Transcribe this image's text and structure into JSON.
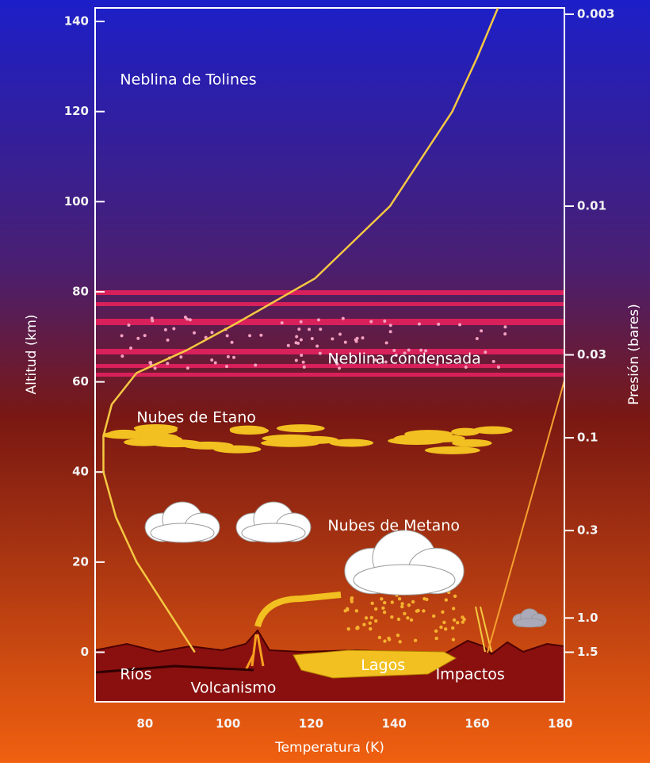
{
  "chart_data": {
    "type": "line",
    "xlabel": "Temperatura (K)",
    "ylabel": "Altitud (km)",
    "y2label": "Presión (bares)",
    "xlim": [
      68,
      181
    ],
    "ylim": [
      -11,
      143
    ],
    "xticks": [
      80,
      100,
      120,
      140,
      160,
      180
    ],
    "yticks": [
      0,
      20,
      40,
      60,
      80,
      100,
      120,
      140
    ],
    "pressure_labels": [
      {
        "label": "0.003",
        "altitude": 141.6
      },
      {
        "label": "0.01",
        "altitude": 99
      },
      {
        "label": "0.03",
        "altitude": 66
      },
      {
        "label": "0.1",
        "altitude": 47.6
      },
      {
        "label": "0.3",
        "altitude": 27
      },
      {
        "label": "1.0",
        "altitude": 7.6
      },
      {
        "label": "1.5",
        "altitude": 0
      }
    ],
    "series": [
      {
        "color": "#f5c842",
        "x": [
          92,
          85,
          78,
          73,
          70,
          70,
          72,
          78,
          90,
          102,
          121,
          139,
          154,
          160,
          165
        ],
        "values": [
          0,
          10,
          20,
          30,
          40,
          48,
          55,
          62,
          67,
          73,
          83,
          99,
          120,
          132,
          143
        ]
      }
    ],
    "annotations": [
      {
        "text": "Neblina de Tolines",
        "x": 74,
        "y": 127
      },
      {
        "text": "Neblina condensada",
        "x": 124,
        "y": 65
      },
      {
        "text": "Nubes de Etano",
        "x": 78,
        "y": 52
      },
      {
        "text": "Nubes de Metano",
        "x": 124,
        "y": 28
      },
      {
        "text": "Lagos",
        "x": 132,
        "y": -3
      },
      {
        "text": "Ríos",
        "x": 74,
        "y": -5
      },
      {
        "text": "Volcanismo",
        "x": 91,
        "y": -8
      },
      {
        "text": "Impactos",
        "x": 150,
        "y": -5
      }
    ]
  }
}
